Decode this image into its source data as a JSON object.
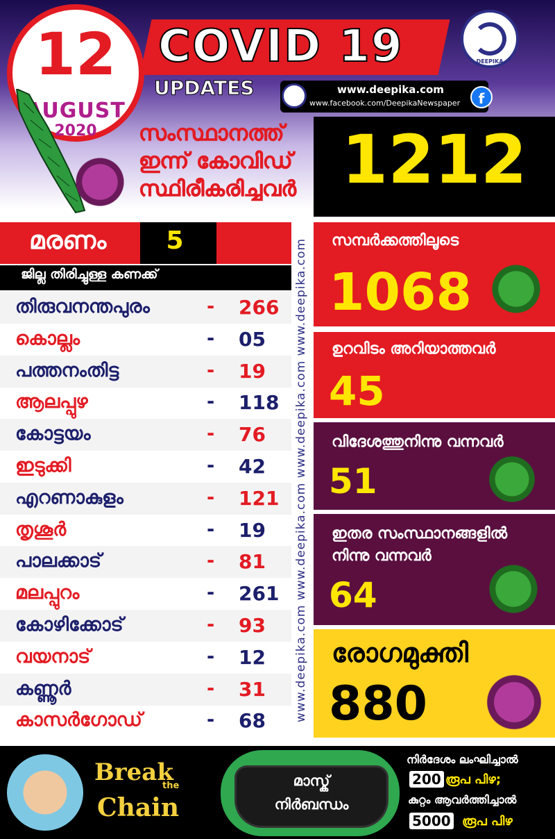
{
  "header": {
    "date_day": "12",
    "date_month": "AUGUST",
    "date_year": "2020",
    "title": "COVID 19",
    "subtitle": "UPDATES",
    "logo_text": "DEEPIKA",
    "website": "www.deepika.com",
    "facebook": "www.facebook.com/DeepikaNewspaper",
    "facebook_icon": "f"
  },
  "confirmed": {
    "label_lines": [
      "സംസ്ഥാനത്ത്",
      "ഇന്ന് കോവിഡ്",
      "സ്ഥിരീകരിച്ചവർ"
    ],
    "value": "1212"
  },
  "deaths": {
    "label": "മരണം",
    "value": "5"
  },
  "district_header": "ജില്ല തിരിച്ചുള്ള കണക്ക്",
  "districts": [
    {
      "name": "തിരുവനന്തപുരം",
      "value": "266",
      "name_color": "navy",
      "value_color": "red"
    },
    {
      "name": "കൊല്ലം",
      "value": "05",
      "name_color": "red",
      "value_color": "navy"
    },
    {
      "name": "പത്തനംതിട്ട",
      "value": "19",
      "name_color": "navy",
      "value_color": "red"
    },
    {
      "name": "ആലപ്പുഴ",
      "value": "118",
      "name_color": "red",
      "value_color": "navy"
    },
    {
      "name": "കോട്ടയം",
      "value": "76",
      "name_color": "navy",
      "value_color": "red"
    },
    {
      "name": "ഇടുക്കി",
      "value": "42",
      "name_color": "red",
      "value_color": "navy"
    },
    {
      "name": "എറണാകുളം",
      "value": "121",
      "name_color": "navy",
      "value_color": "red"
    },
    {
      "name": "തൃശൂർ",
      "value": "19",
      "name_color": "red",
      "value_color": "navy"
    },
    {
      "name": "പാലക്കാട്",
      "value": "81",
      "name_color": "navy",
      "value_color": "red"
    },
    {
      "name": "മലപ്പുറം",
      "value": "261",
      "name_color": "red",
      "value_color": "navy"
    },
    {
      "name": "കോഴിക്കോട്",
      "value": "93",
      "name_color": "navy",
      "value_color": "red"
    },
    {
      "name": "വയനാട്",
      "value": "12",
      "name_color": "red",
      "value_color": "navy"
    },
    {
      "name": "കണ്ണൂർ",
      "value": "31",
      "name_color": "navy",
      "value_color": "red"
    },
    {
      "name": "കാസർഗോഡ്",
      "value": "68",
      "name_color": "red",
      "value_color": "navy"
    }
  ],
  "dash": "-",
  "side_watermark": "www.deepika.com   www.deepika.com   www.deepika.com   www.deepika.com",
  "breakdown": {
    "contact": {
      "label": "സമ്പർക്കത്തിലൂടെ",
      "value": "1068",
      "color": "#e31b23"
    },
    "unknown": {
      "label": "ഉറവിടം അറിയാത്തവർ",
      "value": "45",
      "color": "#e31b23"
    },
    "foreign": {
      "label": "വിദേശത്തുനിന്നു വന്നവർ",
      "value": "51",
      "color": "#5a0f3f"
    },
    "other_states": {
      "label_lines": [
        "ഇതര സംസ്ഥാനങ്ങളിൽ",
        "നിന്നു വന്നവർ"
      ],
      "value": "64",
      "color": "#5a0f3f"
    },
    "recovered": {
      "label": "രോഗമുക്തി",
      "value": "880",
      "color": "#ffd21f"
    }
  },
  "footer": {
    "break_text": "Break",
    "the_text": "the",
    "chain_text": "Chain",
    "mask_line1": "മാസ്ക്",
    "mask_line2": "നിർബന്ധം",
    "fine_line1": "നിർദേശം ലംഘിച്ചാൽ",
    "fine_amount1": "200",
    "fine_suffix1": "രൂപ പിഴ;",
    "fine_line2": "കുറ്റം ആവർത്തിച്ചാൽ",
    "fine_amount2": "5000",
    "fine_suffix2": "രൂപ പിഴ"
  }
}
